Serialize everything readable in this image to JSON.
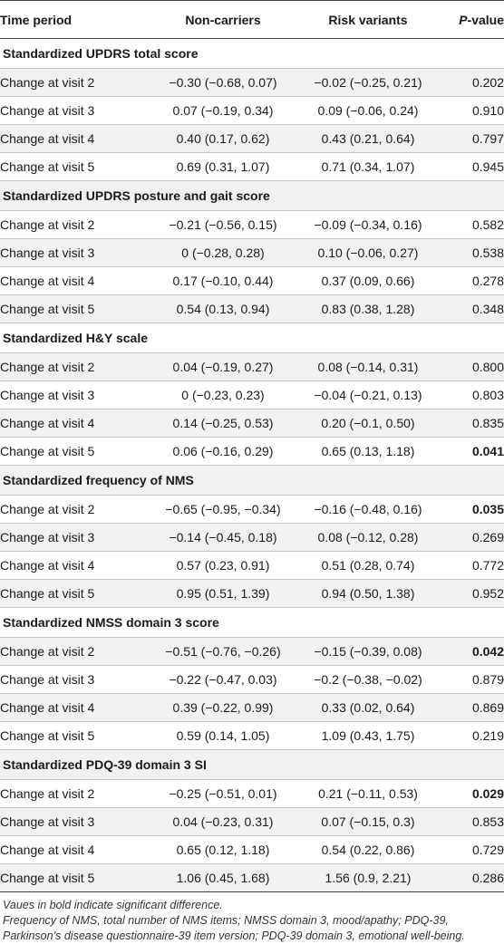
{
  "header": {
    "time_period": "Time period",
    "non_carriers": "Non-carriers",
    "risk_variants": "Risk variants",
    "p_value_italic": "P",
    "p_value_suffix": "-value"
  },
  "sections": [
    {
      "title": "Standardized UPDRS total score",
      "rows": [
        {
          "time": "Change at visit 2",
          "non": "−0.30 (−0.68, 0.07)",
          "risk": "−0.02 (−0.25, 0.21)",
          "p": "0.202",
          "significant": false
        },
        {
          "time": "Change at visit 3",
          "non": "0.07 (−0.19, 0.34)",
          "risk": "0.09 (−0.06, 0.24)",
          "p": "0.910",
          "significant": false
        },
        {
          "time": "Change at visit 4",
          "non": "0.40 (0.17, 0.62)",
          "risk": "0.43 (0.21, 0.64)",
          "p": "0.797",
          "significant": false
        },
        {
          "time": "Change at visit 5",
          "non": "0.69 (0.31, 1.07)",
          "risk": "0.71 (0.34, 1.07)",
          "p": "0.945",
          "significant": false
        }
      ]
    },
    {
      "title": "Standardized UPDRS posture and gait score",
      "rows": [
        {
          "time": "Change at visit 2",
          "non": "−0.21 (−0.56, 0.15)",
          "risk": "−0.09 (−0.34, 0.16)",
          "p": "0.582",
          "significant": false
        },
        {
          "time": "Change at visit 3",
          "non": "0 (−0.28, 0.28)",
          "risk": "0.10 (−0.06, 0.27)",
          "p": "0.538",
          "significant": false
        },
        {
          "time": "Change at visit 4",
          "non": "0.17 (−0.10, 0.44)",
          "risk": "0.37 (0.09, 0.66)",
          "p": "0.278",
          "significant": false
        },
        {
          "time": "Change at visit 5",
          "non": "0.54 (0.13, 0.94)",
          "risk": "0.83 (0.38, 1.28)",
          "p": "0.348",
          "significant": false
        }
      ]
    },
    {
      "title": "Standardized H&Y scale",
      "rows": [
        {
          "time": "Change at visit 2",
          "non": "0.04 (−0.19, 0.27)",
          "risk": "0.08 (−0.14, 0.31)",
          "p": "0.800",
          "significant": false
        },
        {
          "time": "Change at visit 3",
          "non": "0 (−0.23, 0.23)",
          "risk": "−0.04 (−0.21, 0.13)",
          "p": "0.803",
          "significant": false
        },
        {
          "time": "Change at visit 4",
          "non": "0.14 (−0.25, 0.53)",
          "risk": "0.20 (−0.1, 0.50)",
          "p": "0.835",
          "significant": false
        },
        {
          "time": "Change at visit 5",
          "non": "0.06 (−0.16, 0.29)",
          "risk": "0.65 (0.13, 1.18)",
          "p": "0.041",
          "significant": true
        }
      ]
    },
    {
      "title": "Standardized frequency of NMS",
      "rows": [
        {
          "time": "Change at visit 2",
          "non": "−0.65 (−0.95, −0.34)",
          "risk": "−0.16 (−0.48, 0.16)",
          "p": "0.035",
          "significant": true
        },
        {
          "time": "Change at visit 3",
          "non": "−0.14 (−0.45, 0.18)",
          "risk": "0.08 (−0.12, 0.28)",
          "p": "0.269",
          "significant": false
        },
        {
          "time": "Change at visit 4",
          "non": "0.57 (0.23, 0.91)",
          "risk": "0.51 (0.28, 0.74)",
          "p": "0.772",
          "significant": false
        },
        {
          "time": "Change at visit 5",
          "non": "0.95 (0.51, 1.39)",
          "risk": "0.94 (0.50, 1.38)",
          "p": "0.952",
          "significant": false
        }
      ]
    },
    {
      "title": "Standardized NMSS domain 3 score",
      "rows": [
        {
          "time": "Change at visit 2",
          "non": "−0.51 (−0.76, −0.26)",
          "risk": "−0.15 (−0.39, 0.08)",
          "p": "0.042",
          "significant": true
        },
        {
          "time": "Change at visit 3",
          "non": "−0.22 (−0.47, 0.03)",
          "risk": "−0.2 (−0.38, −0.02)",
          "p": "0.879",
          "significant": false
        },
        {
          "time": "Change at visit 4",
          "non": "0.39 (−0.22, 0.99)",
          "risk": "0.33 (0.02, 0.64)",
          "p": "0.869",
          "significant": false
        },
        {
          "time": "Change at visit 5",
          "non": "0.59 (0.14, 1.05)",
          "risk": "1.09 (0.43, 1.75)",
          "p": "0.219",
          "significant": false
        }
      ]
    },
    {
      "title": "Standardized PDQ-39 domain 3 SI",
      "rows": [
        {
          "time": "Change at visit 2",
          "non": "−0.25 (−0.51, 0.01)",
          "risk": "0.21 (−0.11, 0.53)",
          "p": "0.029",
          "significant": true
        },
        {
          "time": "Change at visit 3",
          "non": "0.04 (−0.23, 0.31)",
          "risk": "0.07 (−0.15, 0.3)",
          "p": "0.853",
          "significant": false
        },
        {
          "time": "Change at visit 4",
          "non": "0.65 (0.12, 1.18)",
          "risk": "0.54 (0.22, 0.86)",
          "p": "0.729",
          "significant": false
        },
        {
          "time": "Change at visit 5",
          "non": "1.06 (0.45, 1.68)",
          "risk": "1.56 (0.9, 2.21)",
          "p": "0.286",
          "significant": false
        }
      ]
    }
  ],
  "footnotes": [
    "Vaues in bold indicate significant difference.",
    "Frequency of NMS, total number of NMS items; NMSS domain 3, mood/apathy; PDQ-39, Parkinson’s disease questionnaire-39 item version; PDQ-39 domain 3, emotional well-being."
  ]
}
